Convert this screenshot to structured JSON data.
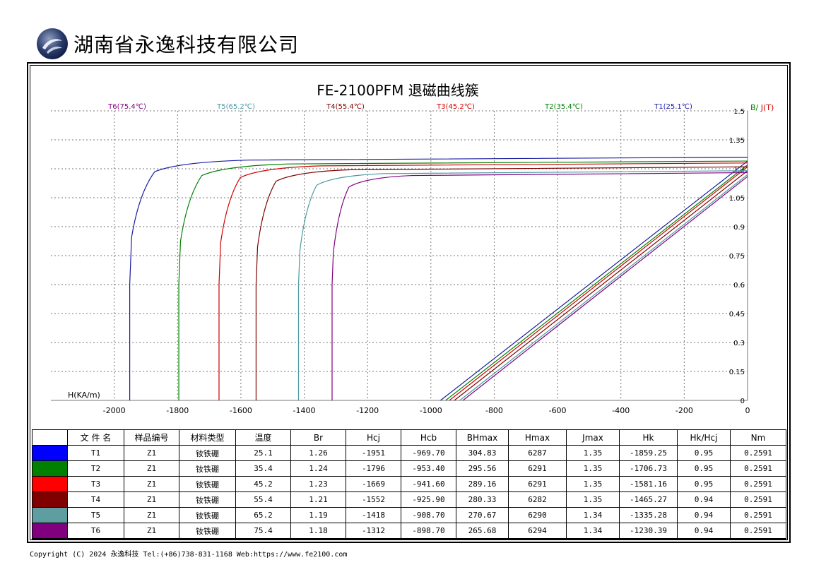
{
  "header": {
    "company": "湖南省永逸科技有限公司"
  },
  "chart_data": {
    "type": "line",
    "title": "FE-2100PFM 退磁曲线簇",
    "xlabel": "H(KA/m)",
    "ylabel": "B/ J(T)",
    "ylabel_parts": [
      "B/",
      "J(T)"
    ],
    "xlim": [
      -2200,
      0
    ],
    "ylim": [
      0,
      1.5
    ],
    "xticks": [
      -2000,
      -1800,
      -1600,
      -1400,
      -1200,
      -1000,
      -800,
      -600,
      -400,
      -200,
      0
    ],
    "xtick_labels": [
      "-2000",
      "-1800",
      "-1600",
      "-1400",
      "-1200",
      "-1000",
      "-800",
      "-600",
      "-400",
      "-200",
      "0"
    ],
    "yticks": [
      0,
      0.15,
      0.3,
      0.45,
      0.6,
      0.75,
      0.9,
      1.05,
      1.2,
      1.35,
      1.5
    ],
    "ytick_labels": [
      "0",
      "0.15",
      "0.3",
      "0.45",
      "0.6",
      "0.75",
      "0.9",
      "1.05",
      "1.2",
      "1.35",
      "1.5"
    ],
    "grid": true,
    "legend_placement": "top",
    "series": [
      {
        "name": "T1(25.1℃)",
        "color": "#1a1aa0",
        "Br": 1.26,
        "Hcj": -1951,
        "Hcb": -969.7
      },
      {
        "name": "T2(35.4℃)",
        "color": "#008000",
        "Br": 1.24,
        "Hcj": -1796,
        "Hcb": -953.4
      },
      {
        "name": "T3(45.2℃)",
        "color": "#d00000",
        "Br": 1.23,
        "Hcj": -1669,
        "Hcb": -941.6
      },
      {
        "name": "T4(55.4℃)",
        "color": "#800000",
        "Br": 1.21,
        "Hcj": -1552,
        "Hcb": -925.9
      },
      {
        "name": "T5(65.2℃)",
        "color": "#4a9aa0",
        "Br": 1.19,
        "Hcj": -1418,
        "Hcb": -908.7
      },
      {
        "name": "T6(75.4℃)",
        "color": "#800080",
        "Br": 1.18,
        "Hcj": -1312,
        "Hcb": -898.7
      }
    ]
  },
  "table": {
    "headers": [
      "",
      "文 件 名",
      "样品编号",
      "材料类型",
      "温度",
      "Br",
      "Hcj",
      "Hcb",
      "BHmax",
      "Hmax",
      "Jmax",
      "Hk",
      "Hk/Hcj",
      "Nm"
    ],
    "rows": [
      {
        "color": "#0000ff",
        "cells": [
          "T1",
          "Z1",
          "钕铁硼",
          "25.1",
          "1.26",
          "-1951",
          "-969.70",
          "304.83",
          "6287",
          "1.35",
          "-1859.25",
          "0.95",
          "0.2591"
        ]
      },
      {
        "color": "#008000",
        "cells": [
          "T2",
          "Z1",
          "钕铁硼",
          "35.4",
          "1.24",
          "-1796",
          "-953.40",
          "295.56",
          "6291",
          "1.35",
          "-1706.73",
          "0.95",
          "0.2591"
        ]
      },
      {
        "color": "#ff0000",
        "cells": [
          "T3",
          "Z1",
          "钕铁硼",
          "45.2",
          "1.23",
          "-1669",
          "-941.60",
          "289.16",
          "6291",
          "1.35",
          "-1581.16",
          "0.95",
          "0.2591"
        ]
      },
      {
        "color": "#800000",
        "cells": [
          "T4",
          "Z1",
          "钕铁硼",
          "55.4",
          "1.21",
          "-1552",
          "-925.90",
          "280.33",
          "6282",
          "1.35",
          "-1465.27",
          "0.94",
          "0.2591"
        ]
      },
      {
        "color": "#5f9ea0",
        "cells": [
          "T5",
          "Z1",
          "钕铁硼",
          "65.2",
          "1.19",
          "-1418",
          "-908.70",
          "270.67",
          "6290",
          "1.34",
          "-1335.28",
          "0.94",
          "0.2591"
        ]
      },
      {
        "color": "#800080",
        "cells": [
          "T6",
          "Z1",
          "钕铁硼",
          "75.4",
          "1.18",
          "-1312",
          "-898.70",
          "265.68",
          "6294",
          "1.34",
          "-1230.39",
          "0.94",
          "0.2591"
        ]
      }
    ]
  },
  "footer": {
    "text": "Copyright (C) 2024 永逸科技  Tel:(+86)738-831-1168  Web:https://www.fe2100.com"
  }
}
